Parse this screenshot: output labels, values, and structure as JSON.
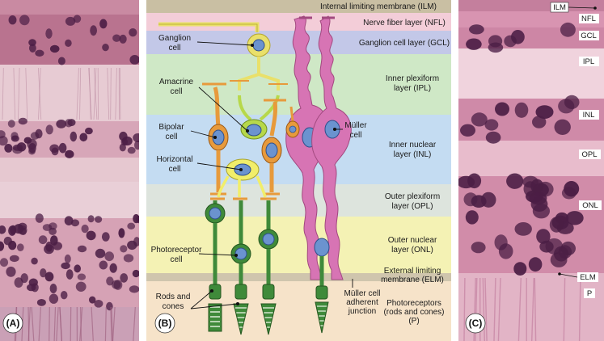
{
  "panels": {
    "a": {
      "tag": "(A)"
    },
    "b": {
      "tag": "(B)"
    },
    "c": {
      "tag": "(C)"
    }
  },
  "layers": [
    {
      "id": "ilm",
      "lines": [
        "Internal limiting membrane (ILM)"
      ],
      "color": "#c9bfa3"
    },
    {
      "id": "nfl",
      "lines": [
        "Nerve fiber layer (NFL)"
      ],
      "color": "#f3cdd8"
    },
    {
      "id": "gcl",
      "lines": [
        "Ganglion cell layer (GCL)"
      ],
      "color": "#c3c8e8"
    },
    {
      "id": "ipl",
      "lines": [
        "Inner plexiform",
        "layer (IPL)"
      ],
      "color": "#cfe8c6"
    },
    {
      "id": "inl",
      "lines": [
        "Inner nuclear",
        "layer (INL)"
      ],
      "color": "#c4dcf2"
    },
    {
      "id": "opl",
      "lines": [
        "Outer plexiform",
        "layer (OPL)"
      ],
      "color": "#dde4dd"
    },
    {
      "id": "onl",
      "lines": [
        "Outer nuclear",
        "layer (ONL)"
      ],
      "color": "#f4f2b4"
    },
    {
      "id": "elm",
      "lines": [
        "External limiting",
        "membrane (ELM)"
      ],
      "color": "#cfc5ad"
    },
    {
      "id": "p",
      "lines": [
        "Photoreceptors",
        "(rods and cones)",
        "(P)"
      ],
      "color": "#f6e3c9"
    }
  ],
  "cell_labels": {
    "ganglion": [
      "Ganglion",
      "cell"
    ],
    "amacrine": [
      "Amacrine",
      "cell"
    ],
    "bipolar": [
      "Bipolar",
      "cell"
    ],
    "horizontal": [
      "Horizontal",
      "cell"
    ],
    "muller": [
      "Müller",
      "cell"
    ],
    "photoreceptor": [
      "Photoreceptor",
      "cell"
    ],
    "rods_cones": [
      "Rods and",
      "cones"
    ],
    "muller_junction": [
      "Müller cell",
      "adherent",
      "junction"
    ]
  },
  "micrograph_labels": [
    "ILM",
    "NFL",
    "GCL",
    "IPL",
    "INL",
    "OPL",
    "ONL",
    "ELM",
    "P"
  ],
  "colors": {
    "ganglion": "#e9e06a",
    "amacrine": "#b7d84a",
    "bipolar": "#e79a3c",
    "horizontal": "#f1ee6a",
    "muller": "#d774b4",
    "photoreceptor": "#3f8a3a",
    "nucleus": "#6b93cf",
    "histo_bg": "#d98fb0",
    "histo_nucleus": "#4b1e45"
  }
}
